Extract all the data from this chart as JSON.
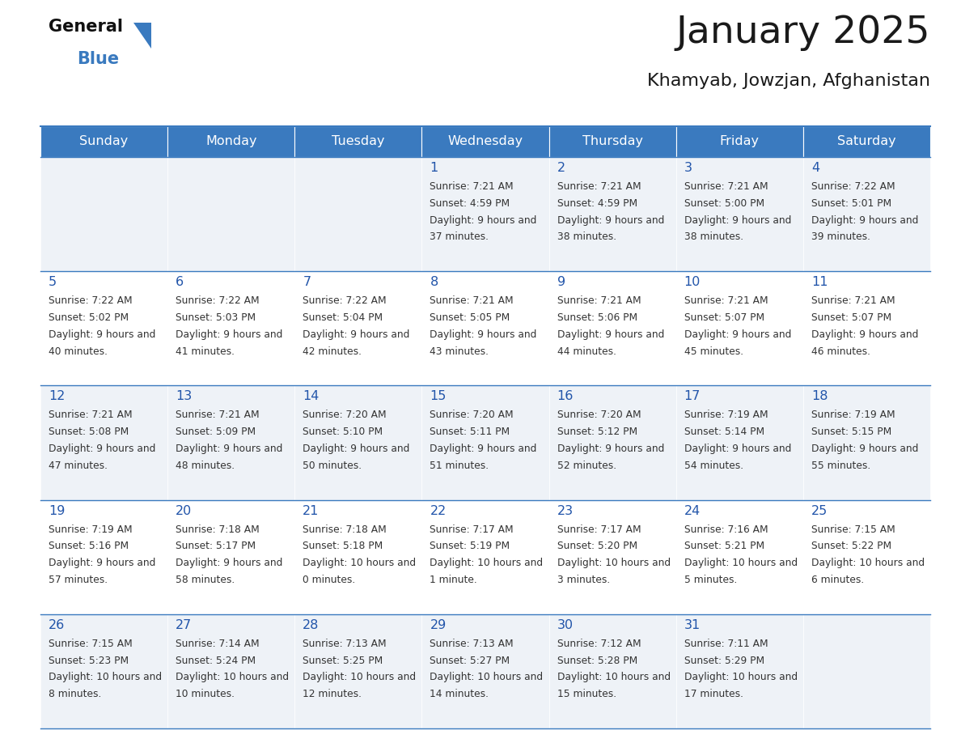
{
  "title": "January 2025",
  "subtitle": "Khamyab, Jowzjan, Afghanistan",
  "days_of_week": [
    "Sunday",
    "Monday",
    "Tuesday",
    "Wednesday",
    "Thursday",
    "Friday",
    "Saturday"
  ],
  "header_bg": "#3a7abf",
  "header_text": "#ffffff",
  "cell_bg_light": "#eef2f7",
  "cell_bg_white": "#ffffff",
  "border_color": "#3a7abf",
  "title_color": "#1a1a1a",
  "subtitle_color": "#1a1a1a",
  "day_num_color": "#2255aa",
  "cell_text_color": "#333333",
  "calendar_data": [
    [
      {
        "day": "",
        "sunrise": "",
        "sunset": "",
        "daylight": ""
      },
      {
        "day": "",
        "sunrise": "",
        "sunset": "",
        "daylight": ""
      },
      {
        "day": "",
        "sunrise": "",
        "sunset": "",
        "daylight": ""
      },
      {
        "day": "1",
        "sunrise": "7:21 AM",
        "sunset": "4:59 PM",
        "daylight": "9 hours and 37 minutes."
      },
      {
        "day": "2",
        "sunrise": "7:21 AM",
        "sunset": "4:59 PM",
        "daylight": "9 hours and 38 minutes."
      },
      {
        "day": "3",
        "sunrise": "7:21 AM",
        "sunset": "5:00 PM",
        "daylight": "9 hours and 38 minutes."
      },
      {
        "day": "4",
        "sunrise": "7:22 AM",
        "sunset": "5:01 PM",
        "daylight": "9 hours and 39 minutes."
      }
    ],
    [
      {
        "day": "5",
        "sunrise": "7:22 AM",
        "sunset": "5:02 PM",
        "daylight": "9 hours and 40 minutes."
      },
      {
        "day": "6",
        "sunrise": "7:22 AM",
        "sunset": "5:03 PM",
        "daylight": "9 hours and 41 minutes."
      },
      {
        "day": "7",
        "sunrise": "7:22 AM",
        "sunset": "5:04 PM",
        "daylight": "9 hours and 42 minutes."
      },
      {
        "day": "8",
        "sunrise": "7:21 AM",
        "sunset": "5:05 PM",
        "daylight": "9 hours and 43 minutes."
      },
      {
        "day": "9",
        "sunrise": "7:21 AM",
        "sunset": "5:06 PM",
        "daylight": "9 hours and 44 minutes."
      },
      {
        "day": "10",
        "sunrise": "7:21 AM",
        "sunset": "5:07 PM",
        "daylight": "9 hours and 45 minutes."
      },
      {
        "day": "11",
        "sunrise": "7:21 AM",
        "sunset": "5:07 PM",
        "daylight": "9 hours and 46 minutes."
      }
    ],
    [
      {
        "day": "12",
        "sunrise": "7:21 AM",
        "sunset": "5:08 PM",
        "daylight": "9 hours and 47 minutes."
      },
      {
        "day": "13",
        "sunrise": "7:21 AM",
        "sunset": "5:09 PM",
        "daylight": "9 hours and 48 minutes."
      },
      {
        "day": "14",
        "sunrise": "7:20 AM",
        "sunset": "5:10 PM",
        "daylight": "9 hours and 50 minutes."
      },
      {
        "day": "15",
        "sunrise": "7:20 AM",
        "sunset": "5:11 PM",
        "daylight": "9 hours and 51 minutes."
      },
      {
        "day": "16",
        "sunrise": "7:20 AM",
        "sunset": "5:12 PM",
        "daylight": "9 hours and 52 minutes."
      },
      {
        "day": "17",
        "sunrise": "7:19 AM",
        "sunset": "5:14 PM",
        "daylight": "9 hours and 54 minutes."
      },
      {
        "day": "18",
        "sunrise": "7:19 AM",
        "sunset": "5:15 PM",
        "daylight": "9 hours and 55 minutes."
      }
    ],
    [
      {
        "day": "19",
        "sunrise": "7:19 AM",
        "sunset": "5:16 PM",
        "daylight": "9 hours and 57 minutes."
      },
      {
        "day": "20",
        "sunrise": "7:18 AM",
        "sunset": "5:17 PM",
        "daylight": "9 hours and 58 minutes."
      },
      {
        "day": "21",
        "sunrise": "7:18 AM",
        "sunset": "5:18 PM",
        "daylight": "10 hours and 0 minutes."
      },
      {
        "day": "22",
        "sunrise": "7:17 AM",
        "sunset": "5:19 PM",
        "daylight": "10 hours and 1 minute."
      },
      {
        "day": "23",
        "sunrise": "7:17 AM",
        "sunset": "5:20 PM",
        "daylight": "10 hours and 3 minutes."
      },
      {
        "day": "24",
        "sunrise": "7:16 AM",
        "sunset": "5:21 PM",
        "daylight": "10 hours and 5 minutes."
      },
      {
        "day": "25",
        "sunrise": "7:15 AM",
        "sunset": "5:22 PM",
        "daylight": "10 hours and 6 minutes."
      }
    ],
    [
      {
        "day": "26",
        "sunrise": "7:15 AM",
        "sunset": "5:23 PM",
        "daylight": "10 hours and 8 minutes."
      },
      {
        "day": "27",
        "sunrise": "7:14 AM",
        "sunset": "5:24 PM",
        "daylight": "10 hours and 10 minutes."
      },
      {
        "day": "28",
        "sunrise": "7:13 AM",
        "sunset": "5:25 PM",
        "daylight": "10 hours and 12 minutes."
      },
      {
        "day": "29",
        "sunrise": "7:13 AM",
        "sunset": "5:27 PM",
        "daylight": "10 hours and 14 minutes."
      },
      {
        "day": "30",
        "sunrise": "7:12 AM",
        "sunset": "5:28 PM",
        "daylight": "10 hours and 15 minutes."
      },
      {
        "day": "31",
        "sunrise": "7:11 AM",
        "sunset": "5:29 PM",
        "daylight": "10 hours and 17 minutes."
      },
      {
        "day": "",
        "sunrise": "",
        "sunset": "",
        "daylight": ""
      }
    ]
  ]
}
